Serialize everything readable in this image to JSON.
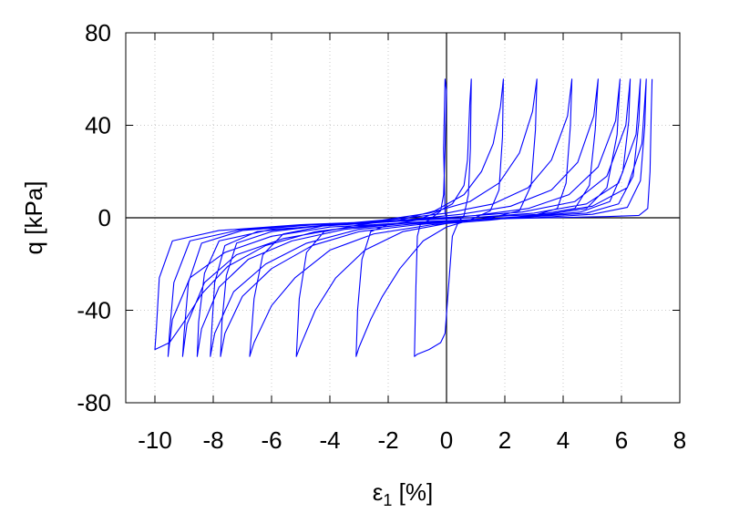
{
  "chart_data": {
    "type": "line",
    "title": "",
    "xlabel": "ε1 [%]",
    "xlabel_main": "ε",
    "xlabel_sub": "1",
    "xlabel_unit": " [%]",
    "ylabel": "q [kPa]",
    "xlim": [
      -11,
      8
    ],
    "ylim": [
      -80,
      80
    ],
    "xticks": [
      -10,
      -8,
      -6,
      -4,
      -2,
      0,
      2,
      4,
      6,
      8
    ],
    "xtick_labels": [
      "-10",
      "-8",
      "-6",
      "-4",
      "-2",
      "0",
      "2",
      "4",
      "6",
      "8"
    ],
    "yticks": [
      -80,
      -40,
      0,
      40,
      80
    ],
    "ytick_labels": [
      "-80",
      "-40",
      "0",
      "40",
      "80"
    ],
    "grid": true,
    "zero_lines": true,
    "legend": "none",
    "line_color": "#0000ff",
    "series": [
      {
        "values": [
          [
            0,
            0
          ],
          [
            -0.05,
            2
          ],
          [
            -0.1,
            30
          ],
          [
            -0.05,
            60
          ],
          [
            0.0,
            55
          ],
          [
            -0.05,
            30
          ],
          [
            -0.1,
            10
          ],
          [
            -0.2,
            3
          ],
          [
            -0.6,
            -1
          ],
          [
            -0.9,
            -3
          ],
          [
            -1.0,
            -8
          ],
          [
            -1.05,
            -30
          ],
          [
            -1.1,
            -60
          ],
          [
            -1.0,
            -59
          ],
          [
            -0.6,
            -57
          ],
          [
            -0.2,
            -54
          ],
          [
            -0.05,
            -50
          ],
          [
            0.2,
            -8
          ],
          [
            0.4,
            -2
          ],
          [
            0.6,
            1
          ],
          [
            0.75,
            10
          ],
          [
            0.82,
            30
          ],
          [
            0.85,
            60
          ],
          [
            0.8,
            50
          ],
          [
            0.72,
            25
          ],
          [
            0.6,
            14
          ],
          [
            0.2,
            6
          ],
          [
            -0.4,
            2
          ],
          [
            -1.0,
            -1
          ],
          [
            -2.0,
            -3
          ],
          [
            -2.6,
            -6
          ],
          [
            -2.9,
            -18
          ],
          [
            -3.05,
            -40
          ],
          [
            -3.1,
            -60
          ],
          [
            -3.0,
            -56
          ],
          [
            -2.6,
            -44
          ],
          [
            -2.2,
            -34
          ],
          [
            -1.6,
            -22
          ],
          [
            -0.8,
            -10
          ],
          [
            0.0,
            -4
          ],
          [
            0.8,
            -1
          ],
          [
            1.5,
            3
          ],
          [
            1.8,
            12
          ],
          [
            1.92,
            35
          ],
          [
            1.95,
            60
          ],
          [
            1.85,
            48
          ],
          [
            1.6,
            32
          ],
          [
            1.2,
            20
          ],
          [
            0.6,
            10
          ],
          [
            -0.4,
            3
          ],
          [
            -1.6,
            -1
          ],
          [
            -3.0,
            -3
          ],
          [
            -4.2,
            -6
          ],
          [
            -4.8,
            -15
          ],
          [
            -5.05,
            -35
          ],
          [
            -5.15,
            -60
          ],
          [
            -5.0,
            -55
          ],
          [
            -4.5,
            -40
          ],
          [
            -3.8,
            -26
          ],
          [
            -2.8,
            -14
          ],
          [
            -1.5,
            -6
          ],
          [
            0.0,
            -2.5
          ],
          [
            1.5,
            0
          ],
          [
            2.5,
            3
          ],
          [
            2.9,
            14
          ],
          [
            3.05,
            38
          ],
          [
            3.1,
            60
          ],
          [
            2.95,
            46
          ],
          [
            2.5,
            28
          ],
          [
            1.8,
            15
          ],
          [
            0.8,
            7
          ],
          [
            -0.6,
            2
          ],
          [
            -2.2,
            -1
          ],
          [
            -4.0,
            -3
          ],
          [
            -5.6,
            -7
          ],
          [
            -6.3,
            -16
          ],
          [
            -6.6,
            -35
          ],
          [
            -6.75,
            -60
          ],
          [
            -6.6,
            -54
          ],
          [
            -6.0,
            -38
          ],
          [
            -5.2,
            -26
          ],
          [
            -4.0,
            -14
          ],
          [
            -2.5,
            -7
          ],
          [
            -0.5,
            -3
          ],
          [
            1.5,
            -1
          ],
          [
            3.0,
            1
          ],
          [
            3.8,
            4
          ],
          [
            4.1,
            15
          ],
          [
            4.25,
            40
          ],
          [
            4.3,
            60
          ],
          [
            4.15,
            44
          ],
          [
            3.6,
            25
          ],
          [
            2.8,
            13
          ],
          [
            1.6,
            6
          ],
          [
            0.0,
            2
          ],
          [
            -2.0,
            -1
          ],
          [
            -4.0,
            -3
          ],
          [
            -6.0,
            -6
          ],
          [
            -7.2,
            -11
          ],
          [
            -7.55,
            -25
          ],
          [
            -7.7,
            -45
          ],
          [
            -7.75,
            -60
          ],
          [
            -7.6,
            -50
          ],
          [
            -7.0,
            -34
          ],
          [
            -6.0,
            -22
          ],
          [
            -4.6,
            -12
          ],
          [
            -3.0,
            -6
          ],
          [
            -1.0,
            -3
          ],
          [
            1.0,
            -1
          ],
          [
            3.0,
            1
          ],
          [
            4.4,
            4
          ],
          [
            4.9,
            14
          ],
          [
            5.1,
            38
          ],
          [
            5.2,
            60
          ],
          [
            5.05,
            44
          ],
          [
            4.5,
            24
          ],
          [
            3.6,
            12
          ],
          [
            2.2,
            5
          ],
          [
            0.5,
            1.5
          ],
          [
            -1.5,
            -1
          ],
          [
            -4.0,
            -3
          ],
          [
            -6.5,
            -6
          ],
          [
            -7.6,
            -12
          ],
          [
            -7.95,
            -28
          ],
          [
            -8.05,
            -48
          ],
          [
            -8.1,
            -60
          ],
          [
            -7.95,
            -50
          ],
          [
            -7.3,
            -32
          ],
          [
            -6.2,
            -20
          ],
          [
            -4.8,
            -11
          ],
          [
            -3.0,
            -5
          ],
          [
            -1.0,
            -2.5
          ],
          [
            1.0,
            -1
          ],
          [
            3.2,
            1
          ],
          [
            4.8,
            4
          ],
          [
            5.5,
            13
          ],
          [
            5.85,
            36
          ],
          [
            5.95,
            60
          ],
          [
            5.8,
            42
          ],
          [
            5.2,
            22
          ],
          [
            4.2,
            10
          ],
          [
            2.8,
            4
          ],
          [
            1.0,
            1
          ],
          [
            -1.0,
            -1
          ],
          [
            -3.5,
            -3
          ],
          [
            -6.0,
            -5
          ],
          [
            -7.8,
            -10
          ],
          [
            -8.3,
            -24
          ],
          [
            -8.5,
            -45
          ],
          [
            -8.55,
            -60
          ],
          [
            -8.4,
            -48
          ],
          [
            -7.8,
            -30
          ],
          [
            -6.8,
            -18
          ],
          [
            -5.3,
            -10
          ],
          [
            -3.5,
            -5
          ],
          [
            -1.5,
            -2.5
          ],
          [
            0.5,
            -1
          ],
          [
            2.8,
            0.5
          ],
          [
            4.6,
            2.5
          ],
          [
            5.6,
            7
          ],
          [
            6.05,
            20
          ],
          [
            6.25,
            42
          ],
          [
            6.3,
            60
          ],
          [
            6.15,
            40
          ],
          [
            5.5,
            18
          ],
          [
            4.4,
            7
          ],
          [
            2.6,
            2.5
          ],
          [
            0.5,
            0.5
          ],
          [
            -2.0,
            -1.5
          ],
          [
            -4.5,
            -3
          ],
          [
            -7.0,
            -5.5
          ],
          [
            -8.4,
            -11
          ],
          [
            -8.85,
            -28
          ],
          [
            -9.0,
            -50
          ],
          [
            -9.05,
            -60
          ],
          [
            -8.9,
            -46
          ],
          [
            -8.3,
            -28
          ],
          [
            -7.2,
            -16
          ],
          [
            -5.6,
            -9
          ],
          [
            -3.6,
            -4.5
          ],
          [
            -1.5,
            -2.5
          ],
          [
            0.8,
            -1
          ],
          [
            3.0,
            0.5
          ],
          [
            4.8,
            2
          ],
          [
            5.9,
            6
          ],
          [
            6.4,
            18
          ],
          [
            6.6,
            42
          ],
          [
            6.65,
            60
          ],
          [
            6.5,
            36
          ],
          [
            5.9,
            15
          ],
          [
            4.8,
            6
          ],
          [
            3.0,
            2
          ],
          [
            0.8,
            0
          ],
          [
            -1.8,
            -1.5
          ],
          [
            -4.5,
            -3
          ],
          [
            -7.0,
            -5
          ],
          [
            -8.8,
            -10
          ],
          [
            -9.35,
            -28
          ],
          [
            -9.5,
            -50
          ],
          [
            -9.55,
            -60
          ],
          [
            -9.4,
            -44
          ],
          [
            -8.8,
            -26
          ],
          [
            -7.6,
            -15
          ],
          [
            -6.0,
            -8
          ],
          [
            -4.0,
            -4
          ],
          [
            -1.8,
            -2.5
          ],
          [
            0.6,
            -1
          ],
          [
            3.0,
            0
          ],
          [
            5.0,
            1.5
          ],
          [
            6.2,
            4.5
          ],
          [
            6.65,
            16
          ],
          [
            6.8,
            40
          ],
          [
            6.85,
            60
          ],
          [
            6.7,
            32
          ],
          [
            6.2,
            13
          ],
          [
            5.0,
            5
          ],
          [
            3.2,
            1.5
          ],
          [
            0.8,
            0
          ],
          [
            -2.0,
            -1.5
          ],
          [
            -5.0,
            -3
          ],
          [
            -7.8,
            -5.5
          ],
          [
            -9.4,
            -10
          ],
          [
            -9.85,
            -26
          ],
          [
            -9.95,
            -48
          ],
          [
            -10.0,
            -57
          ],
          [
            -9.5,
            -54
          ],
          [
            -9.0,
            -45
          ],
          [
            -8.4,
            -33
          ],
          [
            -7.5,
            -21
          ],
          [
            -6.2,
            -12
          ],
          [
            -4.5,
            -6
          ],
          [
            -2.5,
            -3
          ],
          [
            -0.5,
            -1.5
          ],
          [
            1.5,
            -0.5
          ],
          [
            3.5,
            0
          ],
          [
            5.5,
            0.5
          ],
          [
            6.6,
            1
          ],
          [
            6.9,
            4
          ],
          [
            6.98,
            20
          ],
          [
            7.02,
            45
          ],
          [
            7.05,
            60
          ]
        ]
      }
    ]
  }
}
